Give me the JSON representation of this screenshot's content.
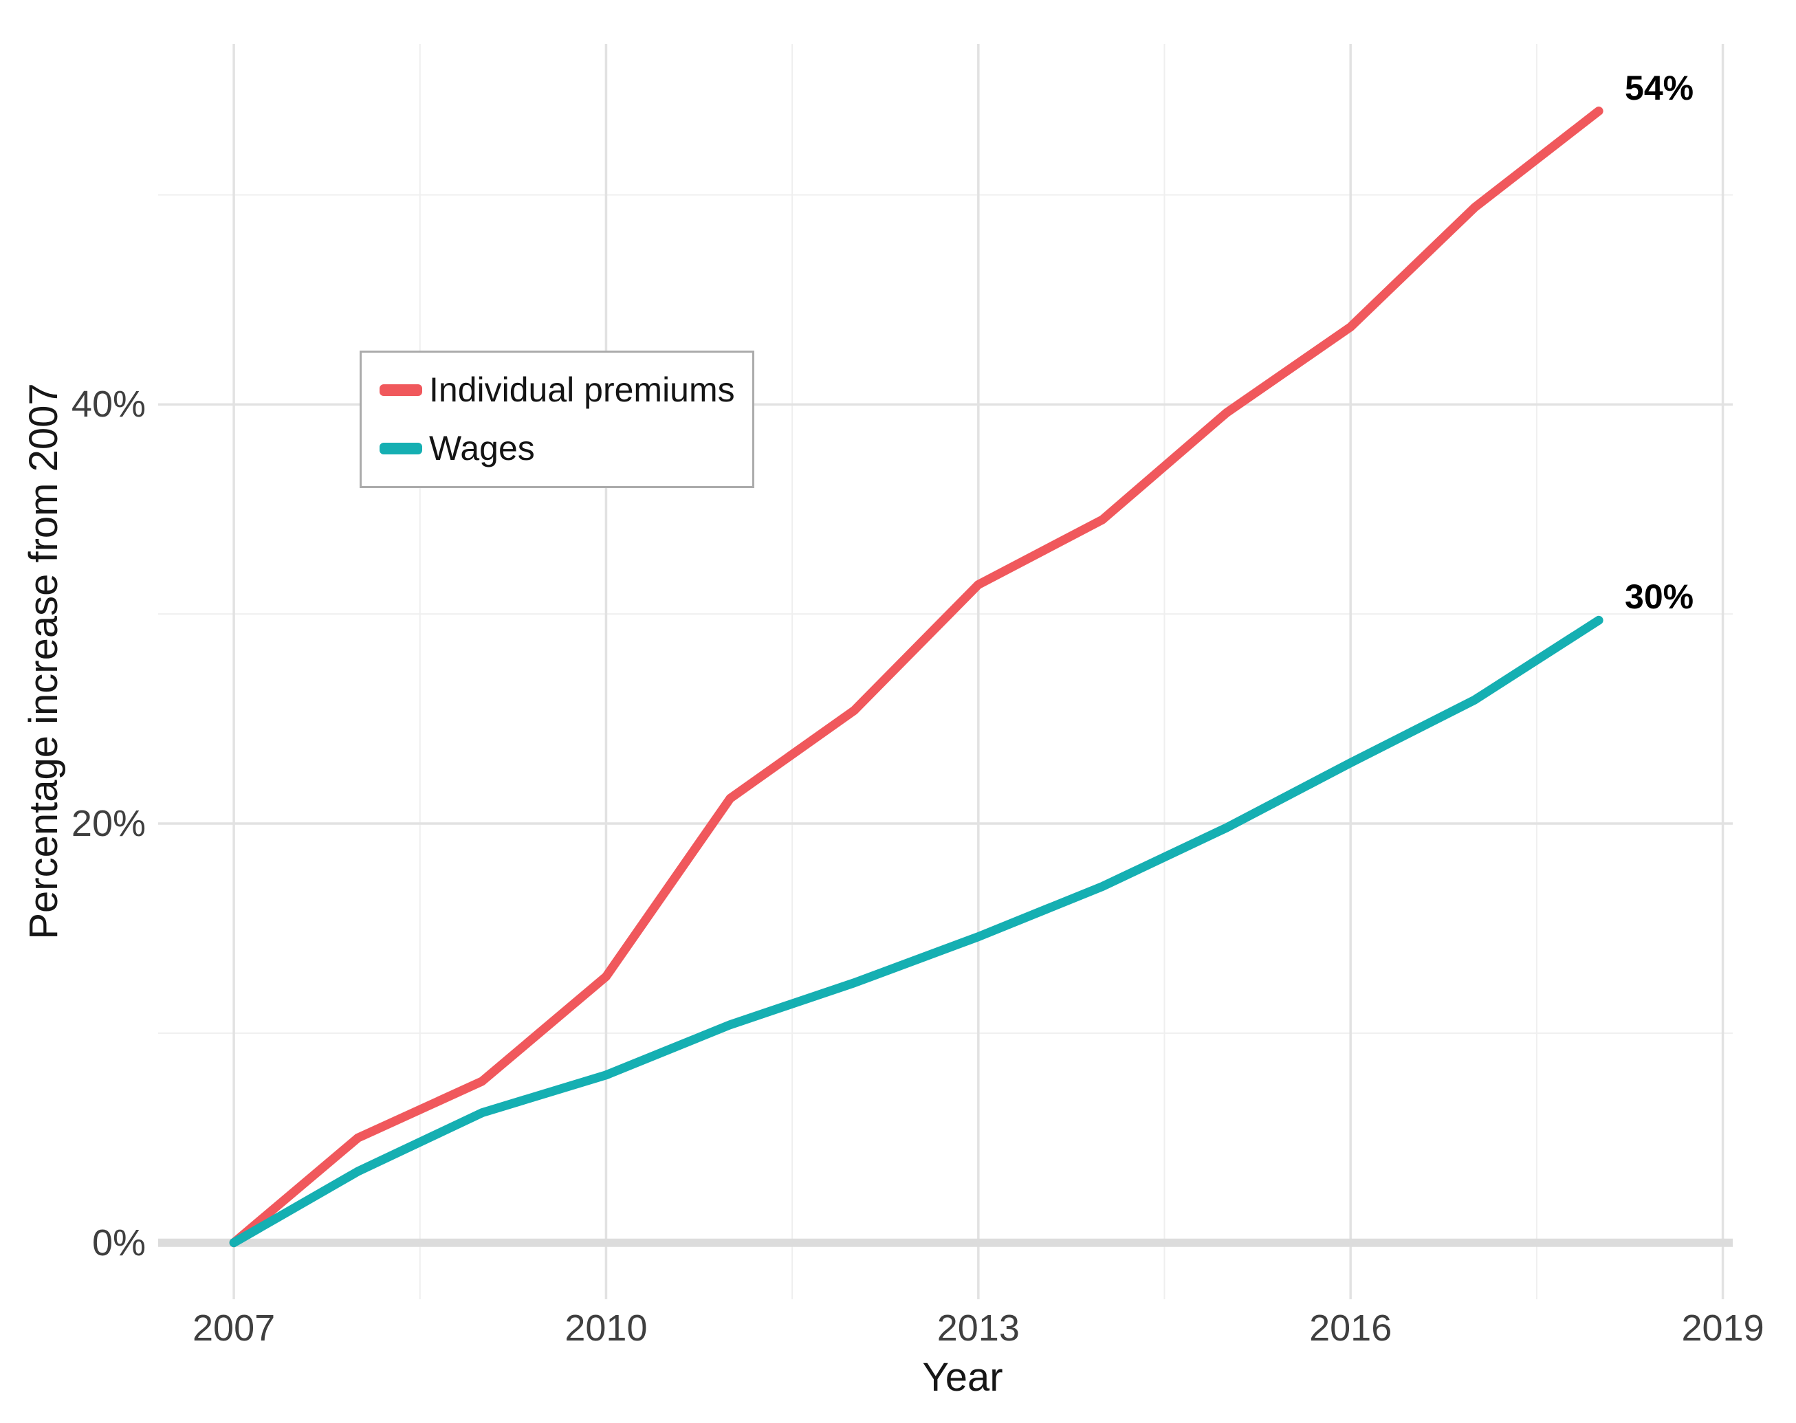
{
  "chart_data": {
    "type": "line",
    "title": "",
    "xlabel": "Year",
    "ylabel": "Percentage increase from 2007",
    "x": [
      2007,
      2008,
      2009,
      2010,
      2011,
      2012,
      2013,
      2014,
      2015,
      2016,
      2017,
      2018
    ],
    "series": [
      {
        "name": "Individual premiums",
        "color": "#F0585C",
        "end_label": "54%",
        "values": [
          0,
          5.0,
          7.7,
          12.7,
          21.2,
          25.4,
          31.4,
          34.5,
          39.6,
          43.7,
          49.4,
          54.0
        ]
      },
      {
        "name": "Wages",
        "color": "#15AFB2",
        "end_label": "30%",
        "values": [
          0,
          3.4,
          6.2,
          8.0,
          10.4,
          12.4,
          14.6,
          17.0,
          19.8,
          22.9,
          25.9,
          29.7
        ]
      }
    ],
    "x_ticks": [
      {
        "value": 2007,
        "label": "2007"
      },
      {
        "value": 2010,
        "label": "2010"
      },
      {
        "value": 2013,
        "label": "2013"
      },
      {
        "value": 2016,
        "label": "2016"
      },
      {
        "value": 2019,
        "label": "2019"
      }
    ],
    "y_ticks": [
      {
        "value": 0,
        "label": "0%"
      },
      {
        "value": 20,
        "label": "20%"
      },
      {
        "value": 40,
        "label": "40%"
      }
    ],
    "x_minor": [
      2008.5,
      2011.5,
      2014.5,
      2017.5
    ],
    "y_minor": [
      10,
      30,
      50
    ],
    "xlim": [
      2006.39,
      2019.08
    ],
    "ylim": [
      -2.7,
      57.2
    ],
    "grid": true,
    "legend_position": "inside-upper-left",
    "baseline_value": 0
  },
  "colors": {
    "premiums_red": "#F0585C",
    "wages_teal": "#15AFB2",
    "grid_major": "#E2E2E2",
    "grid_minor": "#EFEFEF",
    "baseline": "#DCDCDC",
    "tick_label": "#3F3F3F",
    "axis_title": "#161616",
    "end_label": "#000000",
    "legend_border": "#ABABAB"
  }
}
